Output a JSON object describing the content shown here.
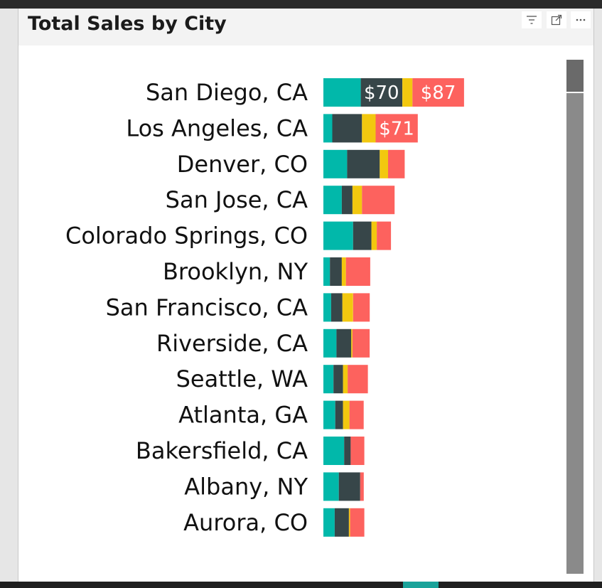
{
  "visual": {
    "title": "Total Sales by City",
    "filter_icon": "filter-icon",
    "focus_icon": "focus-mode-icon",
    "more_icon": "more-options-icon"
  },
  "colors": {
    "teal": "#01B8AA",
    "dark": "#374649",
    "yellow": "#F2C80F",
    "red": "#FD625E"
  },
  "chart_data": {
    "type": "bar",
    "orientation": "horizontal",
    "stacked": true,
    "title": "Total Sales by City",
    "categories": [
      "San Diego, CA",
      "Los Angeles, CA",
      "Denver, CO",
      "San Jose, CA",
      "Colorado Springs, CO",
      "Brooklyn, NY",
      "San Francisco, CA",
      "Riverside, CA",
      "Seattle, WA",
      "Atlanta, GA",
      "Bakersfield, CA",
      "Albany, NY",
      "Aurora, CO"
    ],
    "series": [
      {
        "color": "#01B8AA",
        "values": [
          63,
          15,
          40,
          31,
          50,
          11,
          13,
          22,
          17,
          20,
          35,
          26,
          19
        ]
      },
      {
        "color": "#374649",
        "values": [
          70,
          50,
          55,
          18,
          31,
          20,
          19,
          25,
          16,
          13,
          11,
          36,
          24
        ]
      },
      {
        "color": "#F2C80F",
        "values": [
          17,
          23,
          14,
          16,
          9,
          7,
          18,
          2,
          8,
          11,
          0,
          0,
          2
        ]
      },
      {
        "color": "#FD625E",
        "values": [
          87,
          71,
          28,
          55,
          24,
          41,
          28,
          29,
          34,
          24,
          23,
          6,
          24
        ]
      }
    ],
    "data_labels": [
      {
        "category": "San Diego, CA",
        "series": 1,
        "text": "$70"
      },
      {
        "category": "San Diego, CA",
        "series": 3,
        "text": "$87"
      },
      {
        "category": "Los Angeles, CA",
        "series": 3,
        "text": "$71"
      }
    ],
    "xlim": [
      0,
      400
    ],
    "grid": false,
    "legend": "none"
  }
}
